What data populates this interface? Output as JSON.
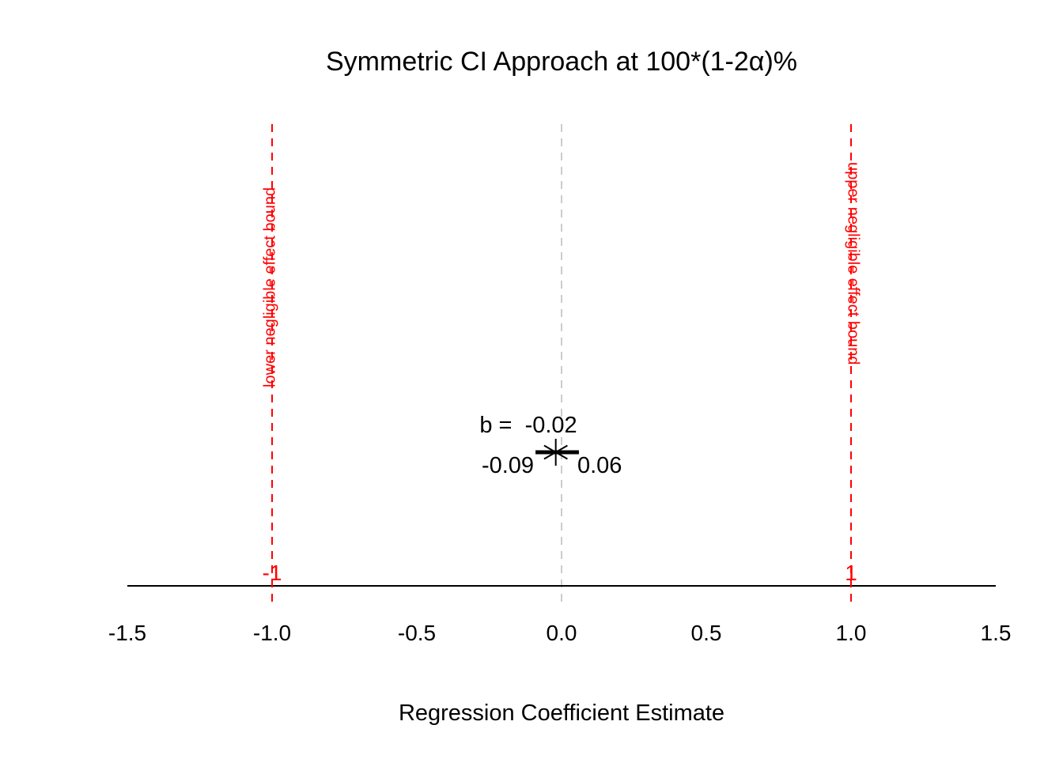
{
  "chart_data": {
    "type": "scatter",
    "title": "Symmetric CI Approach at 100*(1-2α)%",
    "xlabel": "Regression Coefficient Estimate",
    "ylabel": "",
    "xlim": [
      -1.5,
      1.5
    ],
    "x_ticks": [
      "-1.5",
      "-1.0",
      "-0.5",
      "0.0",
      "0.5",
      "1.0",
      "1.5"
    ],
    "grid": false,
    "estimate": {
      "value": -0.02,
      "label_prefix": "b = ",
      "label_value": "-0.02"
    },
    "ci": {
      "lower": -0.09,
      "upper": 0.06,
      "lower_label": "-0.09",
      "upper_label": "0.06"
    },
    "reference_line": {
      "x": 0,
      "color": "#cccccc"
    },
    "bounds": [
      {
        "x": -1,
        "value_label": "-1",
        "text": "lower negligible effect bound",
        "color": "#ff0000"
      },
      {
        "x": 1,
        "value_label": "1",
        "text": "upper negligible effect bound",
        "color": "#ff0000"
      }
    ]
  }
}
